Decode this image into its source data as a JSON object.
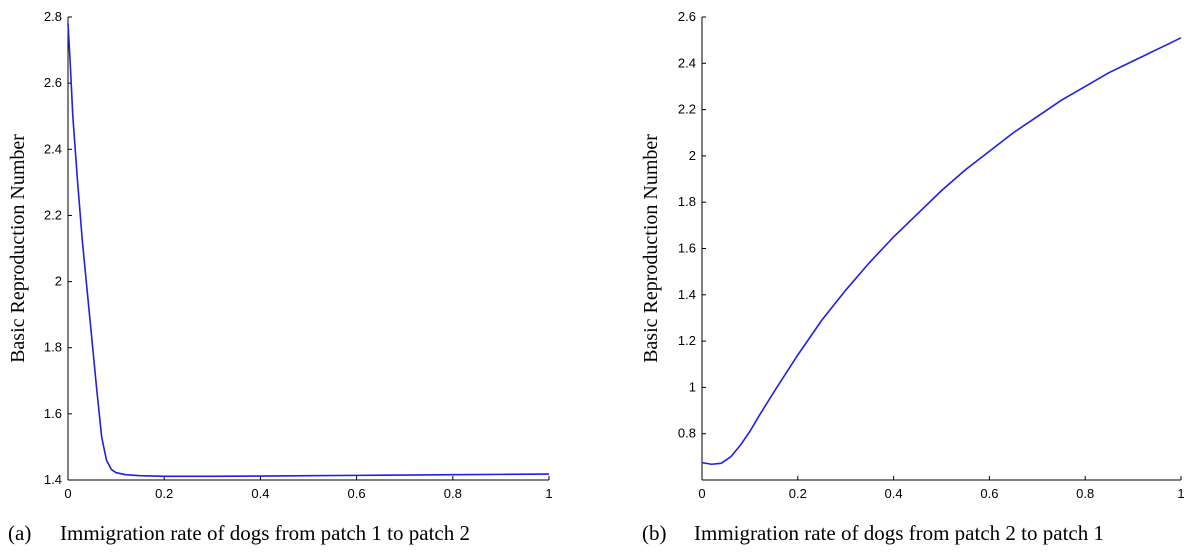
{
  "chart_data": [
    {
      "type": "line",
      "panel_label": "(a)",
      "caption": "Immigration rate of dogs from patch 1 to patch 2",
      "xlabel": "",
      "ylabel": "Basic Reproduction Number",
      "xlim": [
        0,
        1
      ],
      "ylim": [
        1.4,
        2.8
      ],
      "xticks": [
        "0",
        "0.2",
        "0.4",
        "0.6",
        "0.8",
        "1"
      ],
      "yticks": [
        "1.4",
        "1.6",
        "1.8",
        "2",
        "2.2",
        "2.4",
        "2.6",
        "2.8"
      ],
      "grid": false,
      "color": "#1f1fe6",
      "series": [
        {
          "x": [
            0,
            0.005,
            0.01,
            0.02,
            0.03,
            0.04,
            0.05,
            0.06,
            0.07,
            0.08,
            0.09,
            0.1,
            0.12,
            0.15,
            0.2,
            0.3,
            0.4,
            0.5,
            0.6,
            0.7,
            0.8,
            0.9,
            1.0
          ],
          "y": [
            2.78,
            2.65,
            2.5,
            2.3,
            2.12,
            1.97,
            1.82,
            1.67,
            1.53,
            1.46,
            1.432,
            1.422,
            1.416,
            1.413,
            1.411,
            1.411,
            1.412,
            1.413,
            1.414,
            1.415,
            1.416,
            1.417,
            1.418
          ]
        }
      ]
    },
    {
      "type": "line",
      "panel_label": "(b)",
      "caption": "Immigration rate of dogs from patch 2 to patch 1",
      "xlabel": "",
      "ylabel": "Basic Reproduction Number",
      "xlim": [
        0,
        1
      ],
      "ylim": [
        0.6,
        2.6
      ],
      "xticks": [
        "0",
        "0.2",
        "0.4",
        "0.6",
        "0.8",
        "1"
      ],
      "yticks": [
        "0.8",
        "1",
        "1.2",
        "1.4",
        "1.6",
        "1.8",
        "2",
        "2.2",
        "2.4",
        "2.6"
      ],
      "grid": false,
      "color": "#1f1fe6",
      "series": [
        {
          "x": [
            0,
            0.02,
            0.04,
            0.06,
            0.08,
            0.1,
            0.12,
            0.15,
            0.2,
            0.25,
            0.3,
            0.35,
            0.4,
            0.45,
            0.5,
            0.55,
            0.6,
            0.65,
            0.7,
            0.75,
            0.8,
            0.85,
            0.9,
            0.95,
            1.0
          ],
          "y": [
            0.675,
            0.668,
            0.672,
            0.7,
            0.75,
            0.81,
            0.88,
            0.98,
            1.14,
            1.29,
            1.42,
            1.54,
            1.65,
            1.75,
            1.85,
            1.94,
            2.02,
            2.1,
            2.17,
            2.24,
            2.3,
            2.36,
            2.41,
            2.46,
            2.51
          ]
        }
      ]
    }
  ]
}
